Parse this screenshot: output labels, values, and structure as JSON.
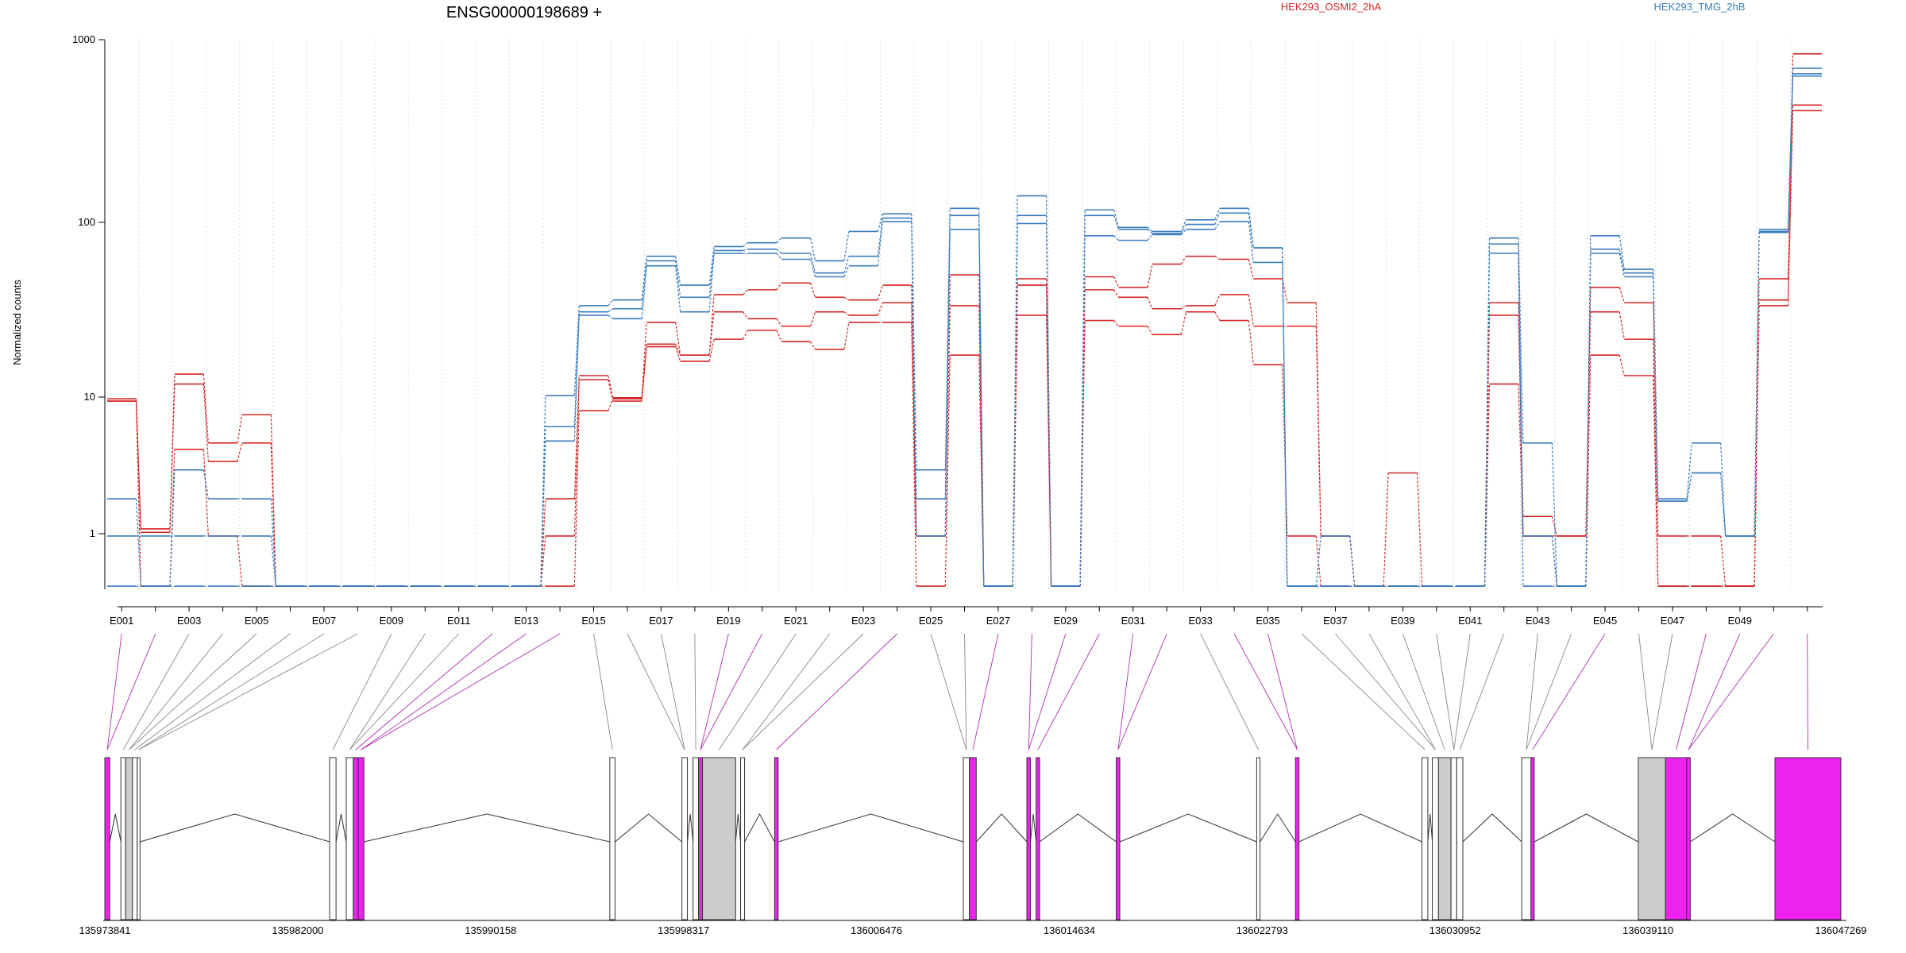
{
  "chart_data": {
    "type": "line",
    "title": "ENSG00000198689 +",
    "ylabel": "Normalized counts",
    "yscale": "log",
    "ylim": [
      0.45,
      1000
    ],
    "yticks": [
      "1000",
      "100",
      "10",
      "1"
    ],
    "ytick_values": [
      1000,
      100,
      10,
      1
    ],
    "legend": [
      {
        "name": "HEK293_OSMI2_2hA",
        "color": "#d62728"
      },
      {
        "name": "HEK293_TMG_2hB",
        "color": "#3a7dbd"
      }
    ],
    "exon_ticks": [
      "E001",
      "E003",
      "E005",
      "E007",
      "E009",
      "E011",
      "E013",
      "E015",
      "E017",
      "E019",
      "E021",
      "E023",
      "E025",
      "E027",
      "E029",
      "E031",
      "E033",
      "E035",
      "E037",
      "E039",
      "E041",
      "E043",
      "E045",
      "E047",
      "E049"
    ],
    "coordinate_labels": [
      "135973841",
      "135982000",
      "135990158",
      "135998317",
      "136006476",
      "136014634",
      "136022793",
      "136030952",
      "136039110",
      "136047269"
    ],
    "genomic_range": [
      135973841,
      136047269
    ],
    "series": [
      {
        "name": "HEK293_OSMI2_2hA",
        "color": "#d62728",
        "values": [
          6.5,
          1.05,
          9.2,
          3.5,
          5.2,
          0.47,
          0.47,
          0.47,
          0.47,
          0.47,
          0.47,
          0.47,
          0.47,
          1.6,
          9.0,
          6.6,
          19,
          12,
          28,
          30,
          33,
          27,
          26,
          32,
          0.95,
          37,
          0.47,
          35,
          0.47,
          36,
          31,
          43,
          48,
          46,
          35,
          25,
          0.95,
          0.47,
          2.3,
          0.47,
          0.47,
          25,
          0.95,
          0.95,
          31,
          25,
          0.95,
          0.95,
          0.47,
          26,
          820
        ]
      },
      {
        "name": "HEK293_OSMI2_2hA",
        "color": "#d62728",
        "values": [
          6.3,
          1.0,
          8.0,
          2.7,
          3.5,
          0.47,
          0.47,
          0.47,
          0.47,
          0.47,
          0.47,
          0.47,
          0.47,
          0.95,
          8.5,
          6.3,
          14,
          12,
          22,
          20,
          18,
          22,
          21,
          25,
          0.95,
          24,
          0.47,
          32,
          0.47,
          30,
          27,
          23,
          24,
          28,
          18,
          18,
          0.95,
          0.47,
          0.47,
          0.47,
          0.47,
          21,
          1.25,
          0.95,
          22,
          15,
          0.47,
          0.47,
          0.47,
          35,
          400
        ]
      },
      {
        "name": "HEK293_OSMI2_2hA",
        "color": "#d62728",
        "values": [
          6.3,
          0.47,
          3.2,
          0.95,
          0.47,
          0.47,
          0.47,
          0.47,
          0.47,
          0.47,
          0.47,
          0.47,
          0.47,
          0.47,
          5.5,
          6.5,
          13.5,
          11,
          15,
          17,
          14.5,
          13,
          19,
          19,
          0.47,
          12,
          0.47,
          21,
          0.47,
          19.5,
          18,
          16,
          22,
          19.5,
          10.5,
          0.95,
          0.47,
          0.47,
          0.47,
          0.47,
          0.47,
          8,
          0.95,
          0.47,
          12,
          9,
          0.47,
          0.47,
          0.47,
          24,
          370
        ]
      },
      {
        "name": "HEK293_TMG_2hB",
        "color": "#3a7dbd",
        "values": [
          1.6,
          0.47,
          2.4,
          1.6,
          1.6,
          0.47,
          0.47,
          0.47,
          0.47,
          0.47,
          0.47,
          0.47,
          0.47,
          6.8,
          24,
          26,
          48,
          32,
          55,
          58,
          62,
          45,
          68,
          87,
          2.4,
          94,
          0.47,
          112,
          0.47,
          92,
          72,
          68,
          80,
          94,
          54,
          0.47,
          0.95,
          0.47,
          0.47,
          0.47,
          0.47,
          62,
          3.5,
          0.47,
          64,
          40,
          1.6,
          3.5,
          0.95,
          70,
          670
        ]
      },
      {
        "name": "HEK293_TMG_2hB",
        "color": "#3a7dbd",
        "values": [
          0.95,
          0.95,
          0.95,
          0.95,
          0.95,
          0.47,
          0.47,
          0.47,
          0.47,
          0.47,
          0.47,
          0.47,
          0.47,
          4.4,
          22,
          23,
          45,
          27,
          52,
          53,
          50,
          38,
          48,
          82,
          1.6,
          85,
          0.47,
          85,
          0.47,
          85,
          70,
          66,
          75,
          88,
          54,
          0.47,
          0.47,
          0.47,
          0.47,
          0.47,
          0.47,
          57,
          0.95,
          0.47,
          53,
          38,
          1.55,
          2.3,
          0.95,
          68,
          620
        ]
      },
      {
        "name": "HEK293_TMG_2hB",
        "color": "#3a7dbd",
        "values": [
          0.47,
          0.47,
          0.47,
          0.47,
          0.47,
          0.47,
          0.47,
          0.47,
          0.47,
          0.47,
          0.47,
          0.47,
          0.47,
          3.6,
          21,
          20,
          42,
          22,
          50,
          50,
          46,
          36,
          42,
          78,
          0.95,
          70,
          0.47,
          76,
          0.47,
          64,
          60,
          65,
          70,
          78,
          44,
          0.47,
          0.47,
          0.47,
          0.47,
          0.47,
          0.47,
          50,
          0.47,
          0.47,
          50,
          36,
          1.55,
          2.3,
          0.95,
          67,
          600
        ]
      }
    ],
    "gene_model": {
      "exons": [
        [
          135973841,
          135974050,
          "#ee22ee"
        ],
        [
          135974520,
          135974720,
          "#ffffff"
        ],
        [
          135974720,
          135975010,
          "#cccccc"
        ],
        [
          135975010,
          135975210,
          "#ffffff"
        ],
        [
          135975210,
          135975330,
          "#ffffff"
        ],
        [
          135983350,
          135983620,
          "#ffffff"
        ],
        [
          135984050,
          135984350,
          "#ffffff"
        ],
        [
          135984350,
          135984560,
          "#ee22ee"
        ],
        [
          135984560,
          135984800,
          "#ee22ee"
        ],
        [
          135995200,
          135995420,
          "#ffffff"
        ],
        [
          135998250,
          135998480,
          "#ffffff"
        ],
        [
          135998720,
          135998950,
          "#ffffff"
        ],
        [
          135998950,
          135999120,
          "#ee22ee"
        ],
        [
          135999120,
          136000520,
          "#cccccc"
        ],
        [
          136000730,
          136000900,
          "#ffffff"
        ],
        [
          136002170,
          136002320,
          "#ee22ee"
        ],
        [
          136010150,
          136010410,
          "#ffffff"
        ],
        [
          136010410,
          136010700,
          "#ee22ee"
        ],
        [
          136012840,
          136012990,
          "#ee22ee"
        ],
        [
          136013230,
          136013380,
          "#ee22ee"
        ],
        [
          136016620,
          136016770,
          "#ee22ee"
        ],
        [
          136022560,
          136022700,
          "#ffffff"
        ],
        [
          136024200,
          136024350,
          "#ee22ee"
        ],
        [
          136029550,
          136029800,
          "#ffffff"
        ],
        [
          136029990,
          136030250,
          "#ffffff"
        ],
        [
          136030250,
          136030780,
          "#cccccc"
        ],
        [
          136030780,
          136031020,
          "#ffffff"
        ],
        [
          136031020,
          136031280,
          "#ffffff"
        ],
        [
          136033770,
          136034160,
          "#ffffff"
        ],
        [
          136034160,
          136034300,
          "#ee22ee"
        ],
        [
          136038700,
          136039850,
          "#cccccc"
        ],
        [
          136039850,
          136040750,
          "#ee22ee"
        ],
        [
          136040750,
          136040900,
          "#ee22ee"
        ],
        [
          136044480,
          136047269,
          "#ee22ee"
        ]
      ]
    }
  }
}
